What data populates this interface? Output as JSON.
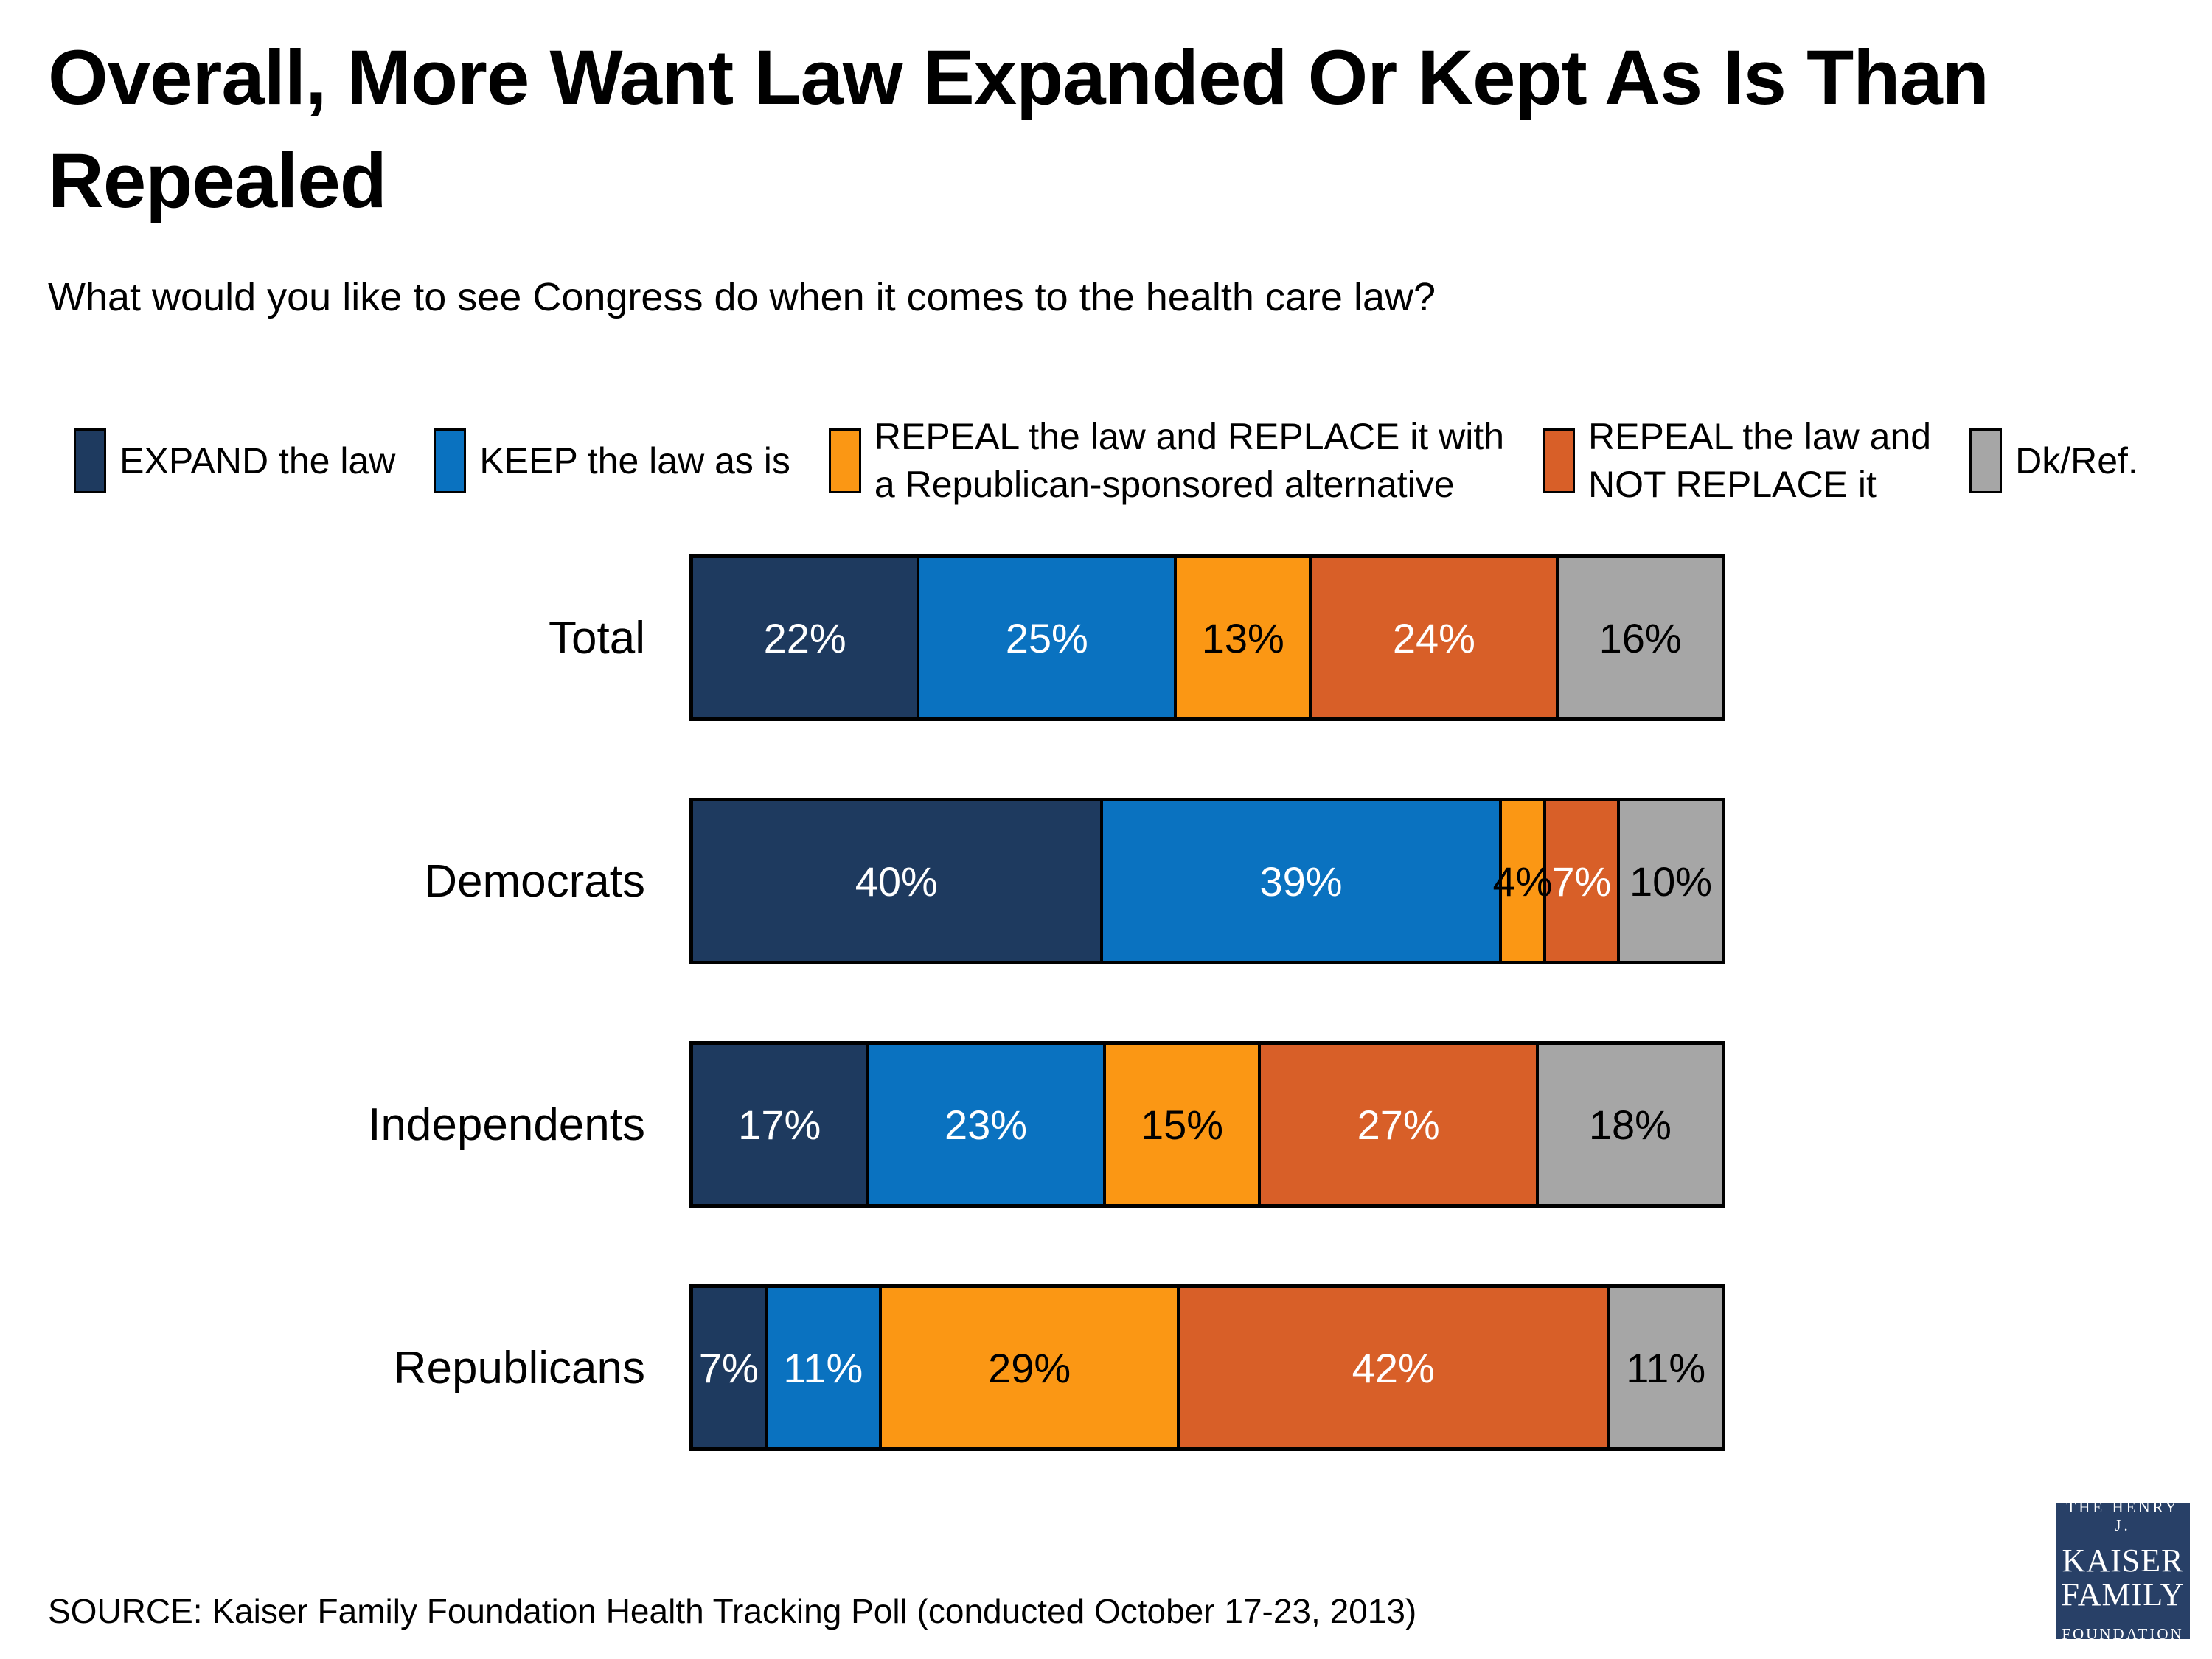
{
  "title_line1": "Overall, More Want Law Expanded Or Kept As Is Than",
  "title_line2": "Repealed",
  "subtitle": "What would you like to see Congress do when it comes to the health care law?",
  "legend": {
    "items": [
      {
        "lines": [
          "EXPAND the law"
        ],
        "color": "#1E3A5F"
      },
      {
        "lines": [
          "KEEP the law as is"
        ],
        "color": "#0A72C0"
      },
      {
        "lines": [
          "REPEAL the law and REPLACE it with",
          "a Republican-sponsored alternative"
        ],
        "color": "#FB9714"
      },
      {
        "lines": [
          "REPEAL the law and",
          "NOT REPLACE it"
        ],
        "color": "#D85F28"
      },
      {
        "lines": [
          "Dk/Ref."
        ],
        "color": "#A6A6A6"
      }
    ]
  },
  "chart_data": {
    "type": "bar",
    "orientation": "horizontal-stacked",
    "value_suffix": "%",
    "axis_range": [
      0,
      100
    ],
    "grid": false,
    "legend_position": "top",
    "categories": [
      "Total",
      "Democrats",
      "Independents",
      "Republicans"
    ],
    "series": [
      {
        "name": "EXPAND the law",
        "color": "#1E3A5F",
        "label_color": "#FFFFFF",
        "values": [
          22,
          40,
          17,
          7
        ]
      },
      {
        "name": "KEEP the law as is",
        "color": "#0A72C0",
        "label_color": "#FFFFFF",
        "values": [
          25,
          39,
          23,
          11
        ]
      },
      {
        "name": "REPEAL the law and REPLACE it with a Republican-sponsored alternative",
        "color": "#FB9714",
        "label_color": "#000000",
        "values": [
          13,
          4,
          15,
          29
        ]
      },
      {
        "name": "REPEAL the law and NOT REPLACE it",
        "color": "#D85F28",
        "label_color": "#FFFFFF",
        "values": [
          24,
          7,
          27,
          42
        ]
      },
      {
        "name": "Dk/Ref.",
        "color": "#A6A6A6",
        "label_color": "#000000",
        "values": [
          16,
          10,
          18,
          11
        ]
      }
    ]
  },
  "source": "SOURCE: Kaiser Family Foundation Health Tracking Poll (conducted October 17-23, 2013)",
  "logo": {
    "line1": "THE HENRY J.",
    "line2": "KAISER",
    "line3": "FAMILY",
    "line4": "FOUNDATION",
    "bg": "#284067"
  }
}
